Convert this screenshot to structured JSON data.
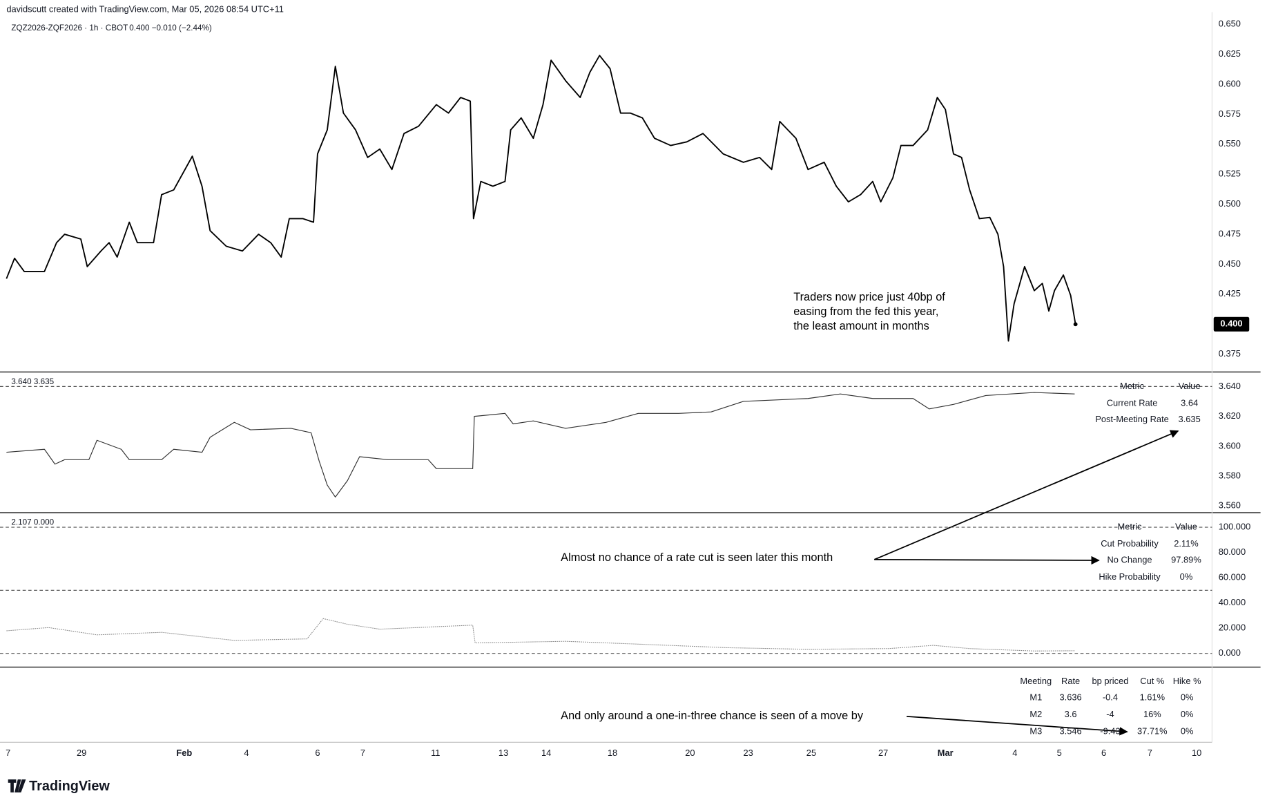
{
  "header": {
    "credit": "davidscutt created with TradingView.com, Mar 05, 2026 08:54 UTC+11",
    "symbol": "ZQZ2026-ZQF2026 · 1h · CBOT",
    "quote": "0.400  −0.010 (−2.44%)"
  },
  "x_axis": {
    "xlim": [
      0,
      1500
    ],
    "xticks": [
      {
        "value": 10,
        "label": "7"
      },
      {
        "value": 101,
        "label": "29"
      },
      {
        "value": 228,
        "label": "Feb"
      },
      {
        "value": 305,
        "label": "4"
      },
      {
        "value": 393,
        "label": "6"
      },
      {
        "value": 449,
        "label": "7"
      },
      {
        "value": 539,
        "label": "11"
      },
      {
        "value": 623,
        "label": "13"
      },
      {
        "value": 676,
        "label": "14"
      },
      {
        "value": 758,
        "label": "18"
      },
      {
        "value": 854,
        "label": "20"
      },
      {
        "value": 926,
        "label": "23"
      },
      {
        "value": 1004,
        "label": "25"
      },
      {
        "value": 1093,
        "label": "27"
      },
      {
        "value": 1170,
        "label": "Mar"
      },
      {
        "value": 1256,
        "label": "4"
      },
      {
        "value": 1311,
        "label": "5"
      },
      {
        "value": 1366,
        "label": "6"
      },
      {
        "value": 1423,
        "label": "7"
      },
      {
        "value": 1481,
        "label": "10"
      }
    ]
  },
  "chart_data": [
    {
      "type": "line",
      "color": "#000000",
      "x": [
        8,
        18,
        30,
        55,
        70,
        80,
        100,
        108,
        125,
        135,
        145,
        160,
        170,
        190,
        200,
        215,
        238,
        250,
        260,
        280,
        300,
        320,
        335,
        348,
        358,
        375,
        388,
        393,
        405,
        415,
        425,
        440,
        455,
        470,
        485,
        500,
        518,
        540,
        555,
        570,
        582,
        586,
        595,
        610,
        625,
        632,
        645,
        660,
        672,
        682,
        700,
        718,
        730,
        742,
        755,
        768,
        780,
        795,
        810,
        830,
        850,
        870,
        895,
        920,
        940,
        955,
        965,
        985,
        1000,
        1020,
        1035,
        1050,
        1065,
        1080,
        1090,
        1105,
        1115,
        1130,
        1148,
        1160,
        1170,
        1180,
        1190,
        1200,
        1212,
        1225,
        1235,
        1242,
        1248,
        1255,
        1268,
        1280,
        1290,
        1298,
        1305,
        1316,
        1325,
        1331
      ],
      "values": [
        0.438,
        0.455,
        0.444,
        0.444,
        0.468,
        0.475,
        0.471,
        0.448,
        0.461,
        0.468,
        0.456,
        0.485,
        0.468,
        0.468,
        0.508,
        0.512,
        0.54,
        0.515,
        0.478,
        0.465,
        0.461,
        0.475,
        0.468,
        0.456,
        0.488,
        0.488,
        0.485,
        0.542,
        0.562,
        0.615,
        0.576,
        0.562,
        0.539,
        0.546,
        0.529,
        0.559,
        0.565,
        0.583,
        0.576,
        0.589,
        0.586,
        0.488,
        0.519,
        0.515,
        0.519,
        0.562,
        0.572,
        0.555,
        0.583,
        0.62,
        0.603,
        0.589,
        0.61,
        0.624,
        0.613,
        0.576,
        0.576,
        0.572,
        0.555,
        0.549,
        0.552,
        0.559,
        0.542,
        0.535,
        0.539,
        0.529,
        0.569,
        0.555,
        0.529,
        0.535,
        0.515,
        0.502,
        0.508,
        0.519,
        0.502,
        0.522,
        0.549,
        0.549,
        0.562,
        0.589,
        0.579,
        0.542,
        0.539,
        0.512,
        0.488,
        0.489,
        0.475,
        0.448,
        0.386,
        0.417,
        0.448,
        0.428,
        0.434,
        0.411,
        0.428,
        0.441,
        0.424,
        0.4
      ],
      "ylim": [
        0.36,
        0.66
      ],
      "yticks": [
        {
          "value": 0.375,
          "label": "0.375"
        },
        {
          "value": 0.425,
          "label": "0.425"
        },
        {
          "value": 0.45,
          "label": "0.450"
        },
        {
          "value": 0.475,
          "label": "0.475"
        },
        {
          "value": 0.5,
          "label": "0.500"
        },
        {
          "value": 0.525,
          "label": "0.525"
        },
        {
          "value": 0.55,
          "label": "0.550"
        },
        {
          "value": 0.575,
          "label": "0.575"
        },
        {
          "value": 0.6,
          "label": "0.600"
        },
        {
          "value": 0.625,
          "label": "0.625"
        },
        {
          "value": 0.65,
          "label": "0.650"
        }
      ],
      "last_price": {
        "value": 0.4,
        "label": "0.400"
      }
    },
    {
      "type": "line",
      "color": "#333333",
      "legend": "3.640  3.635",
      "x": [
        8,
        55,
        68,
        80,
        110,
        120,
        150,
        160,
        200,
        215,
        250,
        260,
        290,
        310,
        360,
        385,
        395,
        405,
        415,
        430,
        445,
        480,
        530,
        540,
        585,
        587,
        625,
        635,
        660,
        700,
        750,
        790,
        840,
        880,
        920,
        1000,
        1040,
        1080,
        1130,
        1150,
        1180,
        1220,
        1280,
        1330
      ],
      "values": [
        3.596,
        3.598,
        3.588,
        3.591,
        3.591,
        3.604,
        3.598,
        3.591,
        3.591,
        3.598,
        3.596,
        3.606,
        3.616,
        3.611,
        3.612,
        3.609,
        3.59,
        3.574,
        3.566,
        3.577,
        3.593,
        3.591,
        3.591,
        3.585,
        3.585,
        3.62,
        3.622,
        3.615,
        3.617,
        3.612,
        3.616,
        3.622,
        3.622,
        3.623,
        3.63,
        3.632,
        3.635,
        3.632,
        3.632,
        3.625,
        3.628,
        3.634,
        3.636,
        3.635
      ],
      "ylim": [
        3.555,
        3.65
      ],
      "yticks": [
        {
          "value": 3.56,
          "label": "3.560"
        },
        {
          "value": 3.58,
          "label": "3.580"
        },
        {
          "value": 3.6,
          "label": "3.600"
        },
        {
          "value": 3.62,
          "label": "3.620"
        },
        {
          "value": 3.64,
          "label": "3.640"
        }
      ],
      "hlines": [
        3.64
      ]
    },
    {
      "type": "line",
      "color": "#888888",
      "legend": "2.107  0.000",
      "x": [
        8,
        60,
        120,
        200,
        290,
        380,
        400,
        430,
        470,
        585,
        588,
        700,
        800,
        900,
        1000,
        1100,
        1155,
        1200,
        1280,
        1330
      ],
      "values": [
        17.9,
        20.5,
        14.7,
        16.7,
        10.3,
        11.5,
        27.6,
        23.1,
        19.2,
        22.4,
        8.3,
        9.6,
        7.1,
        4.5,
        3.2,
        3.8,
        6.4,
        3.8,
        1.9,
        2.107
      ],
      "ylim": [
        -11,
        112
      ],
      "yticks": [
        {
          "value": 0,
          "label": "0.000"
        },
        {
          "value": 20,
          "label": "20.000"
        },
        {
          "value": 40,
          "label": "40.000"
        },
        {
          "value": 60,
          "label": "60.000"
        },
        {
          "value": 80,
          "label": "80.000"
        },
        {
          "value": 100,
          "label": "100.000"
        }
      ],
      "hlines": [
        100,
        50,
        0
      ]
    }
  ],
  "tables": [
    {
      "rows": [
        [
          "Metric",
          "Value"
        ],
        [
          "Current Rate",
          "3.64"
        ],
        [
          "Post-Meeting Rate",
          "3.635"
        ]
      ]
    },
    {
      "rows": [
        [
          "Metric",
          "Value"
        ],
        [
          "Cut Probability",
          "2.11%"
        ],
        [
          "No Change",
          "97.89%"
        ],
        [
          "Hike Probability",
          "0%"
        ]
      ]
    },
    {
      "rows": [
        [
          "Meeting",
          "Rate",
          "bp priced",
          "Cut %",
          "Hike %"
        ],
        [
          "M1",
          "3.636",
          "-0.4",
          "1.61%",
          "0%"
        ],
        [
          "M2",
          "3.6",
          "-4",
          "16%",
          "0%"
        ],
        [
          "M3",
          "3.546",
          "-9.43",
          "37.71%",
          "0%"
        ]
      ]
    }
  ],
  "annotations": [
    "Traders now price just 40bp of",
    "easing from the fed this year,",
    "the least amount in months",
    "Almost no chance of a rate cut is seen later this month",
    "And only around a one-in-three chance is seen of a move by"
  ],
  "logo": "TradingView"
}
